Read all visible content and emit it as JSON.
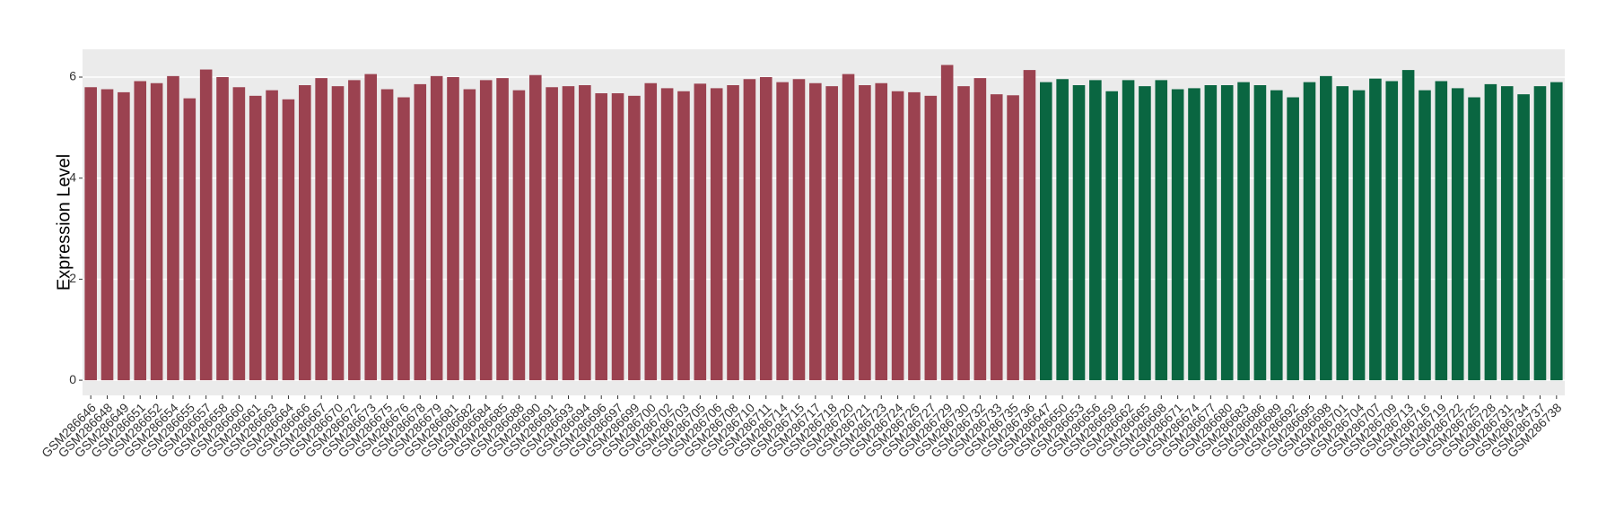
{
  "chart_data": {
    "type": "bar",
    "y_label": "Expression Level",
    "ylim": [
      -0.3,
      6.55
    ],
    "yticks": [
      0,
      2,
      4,
      6
    ],
    "grid": true,
    "series": [
      {
        "color": "#9b4250",
        "categories": [
          "GSM286646",
          "GSM286648",
          "GSM286649",
          "GSM286651",
          "GSM286652",
          "GSM286654",
          "GSM286655",
          "GSM286657",
          "GSM286658",
          "GSM286660",
          "GSM286661",
          "GSM286663",
          "GSM286664",
          "GSM286666",
          "GSM286667",
          "GSM286670",
          "GSM286672",
          "GSM286673",
          "GSM286675",
          "GSM286676",
          "GSM286678",
          "GSM286679",
          "GSM286681",
          "GSM286682",
          "GSM286684",
          "GSM286685",
          "GSM286688",
          "GSM286690",
          "GSM286691",
          "GSM286693",
          "GSM286694",
          "GSM286696",
          "GSM286697",
          "GSM286699",
          "GSM286700",
          "GSM286702",
          "GSM286703",
          "GSM286705",
          "GSM286706",
          "GSM286708",
          "GSM286710",
          "GSM286711",
          "GSM286714",
          "GSM286715",
          "GSM286717",
          "GSM286718",
          "GSM286720",
          "GSM286721",
          "GSM286723",
          "GSM286724",
          "GSM286726",
          "GSM286727",
          "GSM286729",
          "GSM286730",
          "GSM286732",
          "GSM286733",
          "GSM286735",
          "GSM286736"
        ],
        "values": [
          5.8,
          5.76,
          5.7,
          5.92,
          5.88,
          6.02,
          5.58,
          6.15,
          6.0,
          5.8,
          5.63,
          5.74,
          5.56,
          5.84,
          5.98,
          5.82,
          5.94,
          6.06,
          5.76,
          5.6,
          5.86,
          6.02,
          6.0,
          5.76,
          5.94,
          5.98,
          5.74,
          6.04,
          5.8,
          5.82,
          5.84,
          5.68,
          5.68,
          5.63,
          5.88,
          5.78,
          5.72,
          5.87,
          5.78,
          5.84,
          5.96,
          6.0,
          5.9,
          5.96,
          5.88,
          5.82,
          6.06,
          5.84,
          5.88,
          5.72,
          5.7,
          5.63,
          6.24,
          5.82,
          5.98,
          5.66,
          5.64,
          6.14
        ]
      },
      {
        "color": "#0a6641",
        "categories": [
          "GSM286647",
          "GSM286650",
          "GSM286653",
          "GSM286656",
          "GSM286659",
          "GSM286662",
          "GSM286665",
          "GSM286668",
          "GSM286671",
          "GSM286674",
          "GSM286677",
          "GSM286680",
          "GSM286683",
          "GSM286686",
          "GSM286689",
          "GSM286692",
          "GSM286695",
          "GSM286698",
          "GSM286701",
          "GSM286704",
          "GSM286707",
          "GSM286709",
          "GSM286713",
          "GSM286716",
          "GSM286719",
          "GSM286722",
          "GSM286725",
          "GSM286728",
          "GSM286731",
          "GSM286734",
          "GSM286737",
          "GSM286738"
        ],
        "values": [
          5.9,
          5.96,
          5.84,
          5.94,
          5.72,
          5.94,
          5.82,
          5.94,
          5.76,
          5.78,
          5.84,
          5.84,
          5.9,
          5.84,
          5.74,
          5.6,
          5.9,
          6.02,
          5.82,
          5.74,
          5.97,
          5.92,
          6.14,
          5.74,
          5.92,
          5.78,
          5.6,
          5.86,
          5.82,
          5.66,
          5.82,
          5.9
        ]
      }
    ]
  }
}
